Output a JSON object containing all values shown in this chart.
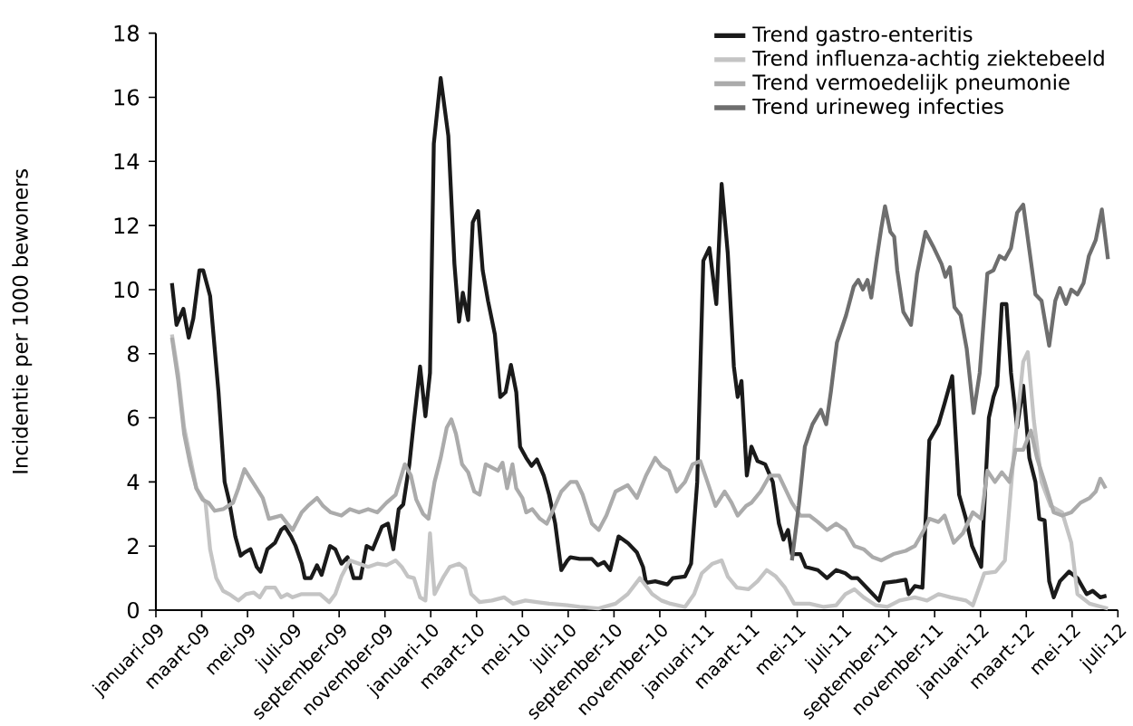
{
  "chart_data": {
    "type": "line",
    "ylabel": "Incidentie per 1000 bewoners",
    "ylim": [
      0,
      18
    ],
    "yticks": [
      0,
      2,
      4,
      6,
      8,
      10,
      12,
      14,
      16,
      18
    ],
    "xlim": [
      "2009-01",
      "2012-07"
    ],
    "xticks": [
      {
        "value": "2009-01",
        "label": "januari-09"
      },
      {
        "value": "2009-03",
        "label": "maart-09"
      },
      {
        "value": "2009-05",
        "label": "mei-09"
      },
      {
        "value": "2009-07",
        "label": "juli-09"
      },
      {
        "value": "2009-09",
        "label": "september-09"
      },
      {
        "value": "2009-11",
        "label": "november-09"
      },
      {
        "value": "2010-01",
        "label": "januari-10"
      },
      {
        "value": "2010-03",
        "label": "maart-10"
      },
      {
        "value": "2010-05",
        "label": "mei-10"
      },
      {
        "value": "2010-07",
        "label": "juli-10"
      },
      {
        "value": "2010-09",
        "label": "september-10"
      },
      {
        "value": "2010-11",
        "label": "november-10"
      },
      {
        "value": "2011-01",
        "label": "januari-11"
      },
      {
        "value": "2011-03",
        "label": "maart-11"
      },
      {
        "value": "2011-05",
        "label": "mei-11"
      },
      {
        "value": "2011-07",
        "label": "juli-11"
      },
      {
        "value": "2011-09",
        "label": "september-11"
      },
      {
        "value": "2011-11",
        "label": "november-11"
      },
      {
        "value": "2012-01",
        "label": "januari-12"
      },
      {
        "value": "2012-03",
        "label": "maart-12"
      },
      {
        "value": "2012-05",
        "label": "mei-12"
      },
      {
        "value": "2012-07",
        "label": "juli-12"
      }
    ],
    "legend": "top right",
    "marker": "none",
    "line_style": "solid",
    "series": [
      {
        "name": "Trend gastro-enteritis",
        "color": "#1a1a1a",
        "x": [
          "2009-01-22",
          "2009-01-28",
          "2009-02-07",
          "2009-02-14",
          "2009-02-20",
          "2009-02-28",
          "2009-03-03",
          "2009-03-12",
          "2009-03-23",
          "2009-04-01",
          "2009-04-07",
          "2009-04-15",
          "2009-04-22",
          "2009-04-27",
          "2009-05-05",
          "2009-05-13",
          "2009-05-18",
          "2009-05-27",
          "2009-06-07",
          "2009-06-15",
          "2009-06-20",
          "2009-06-28",
          "2009-07-04",
          "2009-07-12",
          "2009-07-16",
          "2009-07-24",
          "2009-08-02",
          "2009-08-08",
          "2009-08-19",
          "2009-08-26",
          "2009-09-04",
          "2009-09-12",
          "2009-09-20",
          "2009-09-29",
          "2009-10-07",
          "2009-10-15",
          "2009-10-27",
          "2009-11-05",
          "2009-11-12",
          "2009-11-19",
          "2009-11-25",
          "2009-12-03",
          "2009-12-09",
          "2009-12-17",
          "2009-12-24",
          "2009-12-30",
          "2010-01-05",
          "2010-01-14",
          "2010-01-24",
          "2010-02-02",
          "2010-02-08",
          "2010-02-13",
          "2010-02-20",
          "2010-02-26",
          "2010-03-03",
          "2010-03-09",
          "2010-03-16",
          "2010-03-25",
          "2010-04-02",
          "2010-04-09",
          "2010-04-16",
          "2010-04-23",
          "2010-04-28",
          "2010-05-06",
          "2010-05-13",
          "2010-05-20",
          "2010-05-29",
          "2010-06-06",
          "2010-06-14",
          "2010-06-22",
          "2010-06-30",
          "2010-07-04",
          "2010-07-16",
          "2010-08-02",
          "2010-08-10",
          "2010-08-18",
          "2010-08-26",
          "2010-09-07",
          "2010-09-19",
          "2010-10-01",
          "2010-10-09",
          "2010-10-13",
          "2010-10-25",
          "2010-11-11",
          "2010-11-18",
          "2010-12-04",
          "2010-12-12",
          "2010-12-20",
          "2010-12-28",
          "2011-01-06",
          "2011-01-15",
          "2011-01-22",
          "2011-01-30",
          "2011-02-08",
          "2011-02-13",
          "2011-02-18",
          "2011-02-25",
          "2011-03-01",
          "2011-03-09",
          "2011-03-19",
          "2011-03-29",
          "2011-04-07",
          "2011-04-13",
          "2011-04-19",
          "2011-04-24",
          "2011-05-05",
          "2011-05-12",
          "2011-05-28",
          "2011-06-10",
          "2011-06-22",
          "2011-07-04",
          "2011-07-12",
          "2011-07-20",
          "2011-08-02",
          "2011-08-18",
          "2011-08-25",
          "2011-09-11",
          "2011-09-23",
          "2011-09-27",
          "2011-10-05",
          "2011-10-15",
          "2011-10-24",
          "2011-11-06",
          "2011-11-14",
          "2011-11-24",
          "2011-12-03",
          "2011-12-12",
          "2011-12-20",
          "2012-01-02",
          "2012-01-12",
          "2012-01-18",
          "2012-01-23",
          "2012-01-29",
          "2012-02-05",
          "2012-02-11",
          "2012-02-19",
          "2012-02-27",
          "2012-03-05",
          "2012-03-13",
          "2012-03-18",
          "2012-03-25",
          "2012-04-01",
          "2012-04-07",
          "2012-04-15",
          "2012-04-27",
          "2012-05-08",
          "2012-05-20",
          "2012-05-28",
          "2012-06-08",
          "2012-06-16"
        ],
        "values": [
          10.2,
          8.9,
          9.4,
          8.5,
          9.1,
          10.6,
          10.6,
          9.8,
          6.8,
          4.0,
          3.4,
          2.3,
          1.7,
          1.8,
          1.9,
          1.35,
          1.2,
          1.9,
          2.1,
          2.5,
          2.6,
          2.3,
          2.0,
          1.45,
          1.0,
          1.0,
          1.4,
          1.1,
          2.0,
          1.9,
          1.45,
          1.65,
          1.0,
          1.0,
          2.0,
          1.9,
          2.6,
          2.7,
          1.9,
          3.15,
          3.3,
          4.55,
          5.9,
          7.6,
          6.05,
          7.4,
          14.55,
          16.6,
          14.8,
          10.8,
          9.0,
          9.9,
          9.05,
          12.1,
          12.45,
          10.6,
          9.65,
          8.6,
          6.65,
          6.8,
          7.65,
          6.8,
          5.1,
          4.75,
          4.5,
          4.7,
          4.2,
          3.6,
          2.7,
          1.25,
          1.55,
          1.65,
          1.6,
          1.6,
          1.4,
          1.5,
          1.25,
          2.3,
          2.1,
          1.8,
          1.35,
          0.85,
          0.9,
          0.8,
          1.0,
          1.05,
          1.45,
          4.0,
          10.9,
          11.3,
          9.55,
          13.3,
          11.15,
          7.6,
          6.65,
          7.15,
          4.2,
          5.1,
          4.65,
          4.55,
          4.0,
          2.7,
          2.2,
          2.5,
          1.75,
          1.75,
          1.35,
          1.25,
          1.0,
          1.25,
          1.15,
          1.0,
          1.0,
          0.7,
          0.3,
          0.85,
          0.9,
          0.95,
          0.5,
          0.75,
          0.7,
          5.3,
          5.8,
          6.45,
          7.3,
          3.6,
          2.85,
          2.0,
          1.35,
          6.0,
          6.65,
          7.0,
          9.55,
          9.55,
          7.4,
          5.7,
          7.0,
          4.75,
          4.0,
          2.85,
          2.8,
          0.9,
          0.4,
          0.9,
          1.2,
          1.0,
          0.5,
          0.6,
          0.4,
          0.45
        ]
      },
      {
        "name": "Trend influenza-achtig ziektebeeld",
        "color": "#c4c4c4",
        "x": [
          "2009-01-22",
          "2009-01-30",
          "2009-02-08",
          "2009-02-16",
          "2009-02-24",
          "2009-03-06",
          "2009-03-12",
          "2009-03-20",
          "2009-03-29",
          "2009-04-07",
          "2009-04-19",
          "2009-04-29",
          "2009-05-09",
          "2009-05-17",
          "2009-05-25",
          "2009-06-07",
          "2009-06-15",
          "2009-06-23",
          "2009-06-30",
          "2009-07-12",
          "2009-07-24",
          "2009-08-06",
          "2009-08-18",
          "2009-08-26",
          "2009-09-04",
          "2009-09-15",
          "2009-09-27",
          "2009-10-09",
          "2009-10-21",
          "2009-11-03",
          "2009-11-15",
          "2009-11-23",
          "2009-12-01",
          "2009-12-09",
          "2009-12-17",
          "2009-12-24",
          "2009-12-30",
          "2010-01-06",
          "2010-01-18",
          "2010-01-26",
          "2010-02-08",
          "2010-02-16",
          "2010-02-24",
          "2010-03-05",
          "2010-03-21",
          "2010-04-07",
          "2010-04-19",
          "2010-05-05",
          "2010-05-20",
          "2010-06-06",
          "2010-06-30",
          "2010-07-16",
          "2010-08-10",
          "2010-09-03",
          "2010-09-19",
          "2010-10-05",
          "2010-10-21",
          "2010-11-03",
          "2010-11-15",
          "2010-12-04",
          "2010-12-16",
          "2010-12-26",
          "2011-01-10",
          "2011-01-22",
          "2011-01-30",
          "2011-02-12",
          "2011-02-27",
          "2011-03-09",
          "2011-03-21",
          "2011-04-03",
          "2011-04-15",
          "2011-04-27",
          "2011-05-17",
          "2011-06-06",
          "2011-06-22",
          "2011-07-04",
          "2011-07-16",
          "2011-07-28",
          "2011-08-14",
          "2011-08-29",
          "2011-09-15",
          "2011-10-05",
          "2011-10-21",
          "2011-11-06",
          "2011-11-22",
          "2011-12-12",
          "2011-12-21",
          "2012-01-06",
          "2012-01-21",
          "2012-02-03",
          "2012-02-15",
          "2012-02-27",
          "2012-03-03",
          "2012-03-11",
          "2012-03-21",
          "2012-04-03",
          "2012-04-18",
          "2012-04-30",
          "2012-05-08",
          "2012-05-24",
          "2012-06-10",
          "2012-06-18"
        ],
        "values": [
          8.6,
          7.4,
          5.7,
          4.75,
          3.8,
          3.35,
          1.9,
          1.0,
          0.6,
          0.5,
          0.3,
          0.5,
          0.55,
          0.4,
          0.7,
          0.7,
          0.4,
          0.5,
          0.4,
          0.5,
          0.5,
          0.5,
          0.25,
          0.5,
          1.05,
          1.55,
          1.45,
          1.35,
          1.45,
          1.4,
          1.55,
          1.35,
          1.05,
          1.0,
          0.4,
          0.3,
          2.4,
          0.5,
          1.05,
          1.35,
          1.45,
          1.3,
          0.5,
          0.25,
          0.3,
          0.4,
          0.2,
          0.3,
          0.25,
          0.2,
          0.15,
          0.1,
          0.05,
          0.2,
          0.5,
          1.0,
          0.5,
          0.3,
          0.2,
          0.1,
          0.5,
          1.15,
          1.45,
          1.55,
          1.05,
          0.7,
          0.65,
          0.9,
          1.25,
          1.05,
          0.7,
          0.2,
          0.2,
          0.1,
          0.15,
          0.5,
          0.65,
          0.4,
          0.15,
          0.1,
          0.3,
          0.4,
          0.3,
          0.5,
          0.4,
          0.3,
          0.15,
          1.15,
          1.2,
          1.55,
          4.95,
          7.75,
          8.05,
          5.9,
          4.0,
          3.25,
          3.05,
          2.1,
          0.5,
          0.2,
          0.1,
          0.05
        ]
      },
      {
        "name": "Trend vermoedelijk pneumonie",
        "color": "#ababab",
        "x": [
          "2009-01-22",
          "2009-01-30",
          "2009-02-08",
          "2009-02-16",
          "2009-02-24",
          "2009-03-02",
          "2009-03-10",
          "2009-03-18",
          "2009-03-29",
          "2009-04-12",
          "2009-04-19",
          "2009-04-27",
          "2009-05-05",
          "2009-05-13",
          "2009-05-21",
          "2009-05-29",
          "2009-06-07",
          "2009-06-15",
          "2009-06-23",
          "2009-06-30",
          "2009-07-12",
          "2009-07-20",
          "2009-08-02",
          "2009-08-10",
          "2009-08-20",
          "2009-09-04",
          "2009-09-15",
          "2009-09-27",
          "2009-10-09",
          "2009-10-21",
          "2009-11-03",
          "2009-11-15",
          "2009-11-27",
          "2009-12-05",
          "2009-12-12",
          "2009-12-21",
          "2009-12-28",
          "2010-01-06",
          "2010-01-14",
          "2010-01-22",
          "2010-01-28",
          "2010-02-04",
          "2010-02-12",
          "2010-02-20",
          "2010-02-28",
          "2010-03-05",
          "2010-03-13",
          "2010-03-21",
          "2010-03-29",
          "2010-04-05",
          "2010-04-11",
          "2010-04-18",
          "2010-04-23",
          "2010-05-01",
          "2010-05-06",
          "2010-05-14",
          "2010-05-24",
          "2010-06-03",
          "2010-06-10",
          "2010-06-22",
          "2010-07-04",
          "2010-07-12",
          "2010-07-20",
          "2010-08-02",
          "2010-08-11",
          "2010-08-21",
          "2010-09-03",
          "2010-09-19",
          "2010-10-01",
          "2010-10-13",
          "2010-10-25",
          "2010-11-03",
          "2010-11-13",
          "2010-11-23",
          "2010-12-04",
          "2010-12-14",
          "2010-12-24",
          "2011-01-02",
          "2011-01-14",
          "2011-01-26",
          "2011-02-05",
          "2011-02-13",
          "2011-02-24",
          "2011-03-01",
          "2011-03-13",
          "2011-03-25",
          "2011-04-07",
          "2011-04-15",
          "2011-04-24",
          "2011-05-05",
          "2011-05-17",
          "2011-05-28",
          "2011-06-10",
          "2011-06-22",
          "2011-07-04",
          "2011-07-16",
          "2011-07-28",
          "2011-08-10",
          "2011-08-21",
          "2011-09-07",
          "2011-09-23",
          "2011-10-05",
          "2011-10-17",
          "2011-10-24",
          "2011-11-06",
          "2011-11-14",
          "2011-11-26",
          "2011-12-08",
          "2011-12-21",
          "2012-01-02",
          "2012-01-10",
          "2012-01-20",
          "2012-01-29",
          "2012-02-09",
          "2012-02-17",
          "2012-02-27",
          "2012-03-07",
          "2012-03-15",
          "2012-03-25",
          "2012-04-07",
          "2012-04-18",
          "2012-04-30",
          "2012-05-12",
          "2012-05-24",
          "2012-06-02",
          "2012-06-08",
          "2012-06-15"
        ],
        "values": [
          8.5,
          7.2,
          5.5,
          4.55,
          3.8,
          3.45,
          3.35,
          3.1,
          3.15,
          3.35,
          3.8,
          4.4,
          4.1,
          3.8,
          3.5,
          2.85,
          2.9,
          2.95,
          2.7,
          2.5,
          3.05,
          3.25,
          3.5,
          3.25,
          3.05,
          2.95,
          3.15,
          3.05,
          3.15,
          3.05,
          3.35,
          3.6,
          4.55,
          4.2,
          3.45,
          3.0,
          2.85,
          4.0,
          4.75,
          5.7,
          5.95,
          5.5,
          4.55,
          4.3,
          3.7,
          3.6,
          4.55,
          4.45,
          4.35,
          4.6,
          3.8,
          4.55,
          3.8,
          3.5,
          3.05,
          3.15,
          2.85,
          2.7,
          3.05,
          3.7,
          4.0,
          4.0,
          3.6,
          2.7,
          2.5,
          2.95,
          3.7,
          3.9,
          3.5,
          4.2,
          4.75,
          4.5,
          4.35,
          3.7,
          4.0,
          4.55,
          4.65,
          4.1,
          3.25,
          3.7,
          3.35,
          2.95,
          3.25,
          3.35,
          3.7,
          4.2,
          4.2,
          3.8,
          3.35,
          2.95,
          2.95,
          2.75,
          2.5,
          2.7,
          2.5,
          2.0,
          1.9,
          1.65,
          1.55,
          1.75,
          1.85,
          2.0,
          2.5,
          2.85,
          2.75,
          2.95,
          2.1,
          2.4,
          3.05,
          2.85,
          4.35,
          4.0,
          4.3,
          4.0,
          5.0,
          5.0,
          5.6,
          4.75,
          4.0,
          3.05,
          2.95,
          3.05,
          3.35,
          3.5,
          3.7,
          4.1,
          3.8
        ]
      },
      {
        "name": "Trend urineweg infecties",
        "color": "#6e6e6e",
        "x": [
          "2011-04-24",
          "2011-05-03",
          "2011-05-11",
          "2011-05-21",
          "2011-06-02",
          "2011-06-09",
          "2011-06-15",
          "2011-06-23",
          "2011-07-05",
          "2011-07-15",
          "2011-07-21",
          "2011-07-27",
          "2011-08-03",
          "2011-08-08",
          "2011-08-15",
          "2011-08-21",
          "2011-08-26",
          "2011-09-03",
          "2011-09-08",
          "2011-09-12",
          "2011-09-20",
          "2011-09-30",
          "2011-10-08",
          "2011-10-19",
          "2011-10-29",
          "2011-11-10",
          "2011-11-15",
          "2011-11-21",
          "2011-11-27",
          "2011-12-05",
          "2011-12-13",
          "2011-12-22",
          "2011-12-30",
          "2012-01-10",
          "2012-01-18",
          "2012-01-26",
          "2012-02-03",
          "2012-02-11",
          "2012-02-19",
          "2012-02-27",
          "2012-03-05",
          "2012-03-13",
          "2012-03-21",
          "2012-04-01",
          "2012-04-09",
          "2012-04-15",
          "2012-04-23",
          "2012-04-30",
          "2012-05-08",
          "2012-05-16",
          "2012-05-23",
          "2012-06-02",
          "2012-06-10",
          "2012-06-18"
        ],
        "values": [
          1.55,
          3.25,
          5.1,
          5.8,
          6.25,
          5.8,
          6.8,
          8.35,
          9.2,
          10.1,
          10.3,
          10.0,
          10.3,
          9.75,
          10.95,
          11.9,
          12.6,
          11.8,
          11.65,
          10.6,
          9.3,
          8.9,
          10.5,
          11.8,
          11.35,
          10.8,
          10.4,
          10.7,
          9.45,
          9.2,
          8.15,
          6.15,
          7.4,
          10.5,
          10.6,
          11.05,
          10.95,
          11.3,
          12.4,
          12.65,
          11.25,
          9.85,
          9.65,
          8.25,
          9.65,
          10.05,
          9.55,
          10.0,
          9.85,
          10.2,
          11.05,
          11.55,
          12.5,
          10.95
        ]
      }
    ]
  }
}
